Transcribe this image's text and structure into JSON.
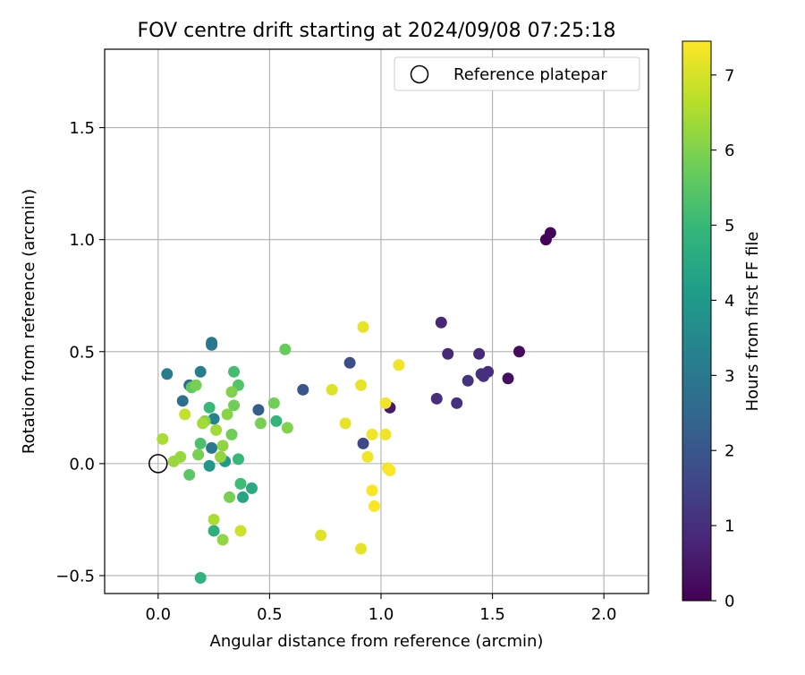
{
  "chart_data": {
    "type": "scatter",
    "title": "FOV centre drift starting at 2024/09/08 07:25:18",
    "xlabel": "Angular distance from reference (arcmin)",
    "ylabel": "Rotation from reference (arcmin)",
    "xlim": [
      -0.24,
      2.2
    ],
    "ylim": [
      -0.58,
      1.85
    ],
    "xticks": [
      0.0,
      0.5,
      1.0,
      1.5,
      2.0
    ],
    "xtick_labels": [
      "0.0",
      "0.5",
      "1.0",
      "1.5",
      "2.0"
    ],
    "yticks": [
      -0.5,
      0.0,
      0.5,
      1.0,
      1.5
    ],
    "ytick_labels": [
      "−0.5",
      "0.0",
      "0.5",
      "1.0",
      "1.5"
    ],
    "grid": true,
    "legend": {
      "placement": "top-right",
      "entries": [
        {
          "label": "Reference platepar",
          "marker": "open-circle"
        }
      ]
    },
    "colorbar": {
      "label": "Hours from first FF file",
      "colormap": "viridis",
      "range": [
        0,
        7.45
      ],
      "ticks": [
        0,
        1,
        2,
        3,
        4,
        5,
        6,
        7
      ],
      "tick_labels": [
        "0",
        "1",
        "2",
        "3",
        "4",
        "5",
        "6",
        "7"
      ],
      "stops": [
        "#440154",
        "#482878",
        "#3e4a89",
        "#31688e",
        "#26828e",
        "#1f9e89",
        "#35b779",
        "#6ece58",
        "#b5de2b",
        "#fde725"
      ]
    },
    "reference_point": {
      "x": 0.0,
      "y": 0.0
    },
    "points": [
      {
        "x": 1.74,
        "y": 1.0,
        "t": 0.05
      },
      {
        "x": 1.76,
        "y": 1.03,
        "t": 0.1
      },
      {
        "x": 1.62,
        "y": 0.5,
        "t": 0.2
      },
      {
        "x": 1.57,
        "y": 0.38,
        "t": 0.3
      },
      {
        "x": 1.04,
        "y": 0.25,
        "t": 0.5
      },
      {
        "x": 1.27,
        "y": 0.63,
        "t": 0.8
      },
      {
        "x": 1.3,
        "y": 0.49,
        "t": 0.85
      },
      {
        "x": 1.44,
        "y": 0.49,
        "t": 0.9
      },
      {
        "x": 1.48,
        "y": 0.41,
        "t": 0.95
      },
      {
        "x": 1.45,
        "y": 0.4,
        "t": 1.0
      },
      {
        "x": 1.46,
        "y": 0.39,
        "t": 1.05
      },
      {
        "x": 1.39,
        "y": 0.37,
        "t": 1.1
      },
      {
        "x": 1.25,
        "y": 0.29,
        "t": 1.0
      },
      {
        "x": 1.34,
        "y": 0.27,
        "t": 1.05
      },
      {
        "x": 0.92,
        "y": 0.09,
        "t": 1.6
      },
      {
        "x": 0.86,
        "y": 0.45,
        "t": 1.8
      },
      {
        "x": 0.65,
        "y": 0.33,
        "t": 2.0
      },
      {
        "x": 0.45,
        "y": 0.24,
        "t": 2.2
      },
      {
        "x": 0.14,
        "y": 0.35,
        "t": 2.6
      },
      {
        "x": 0.11,
        "y": 0.28,
        "t": 2.7
      },
      {
        "x": 0.24,
        "y": 0.53,
        "t": 2.9
      },
      {
        "x": 0.24,
        "y": 0.54,
        "t": 3.0
      },
      {
        "x": 0.04,
        "y": 0.4,
        "t": 3.1
      },
      {
        "x": 0.19,
        "y": 0.41,
        "t": 3.2
      },
      {
        "x": 0.24,
        "y": 0.07,
        "t": 3.0
      },
      {
        "x": 0.25,
        "y": 0.2,
        "t": 3.3
      },
      {
        "x": 0.23,
        "y": -0.01,
        "t": 3.9
      },
      {
        "x": 0.3,
        "y": 0.01,
        "t": 4.0
      },
      {
        "x": 0.38,
        "y": -0.15,
        "t": 4.4
      },
      {
        "x": 0.42,
        "y": -0.11,
        "t": 4.5
      },
      {
        "x": 0.25,
        "y": -0.3,
        "t": 4.7
      },
      {
        "x": 0.19,
        "y": -0.51,
        "t": 4.8
      },
      {
        "x": 0.53,
        "y": 0.19,
        "t": 4.9
      },
      {
        "x": 0.36,
        "y": 0.02,
        "t": 5.0
      },
      {
        "x": 0.37,
        "y": -0.09,
        "t": 5.1
      },
      {
        "x": 0.23,
        "y": 0.25,
        "t": 5.0
      },
      {
        "x": 0.34,
        "y": 0.41,
        "t": 5.2
      },
      {
        "x": 0.36,
        "y": 0.35,
        "t": 5.4
      },
      {
        "x": 0.19,
        "y": 0.09,
        "t": 5.3
      },
      {
        "x": 0.14,
        "y": -0.05,
        "t": 5.5
      },
      {
        "x": 0.15,
        "y": 0.34,
        "t": 5.6
      },
      {
        "x": 0.57,
        "y": 0.51,
        "t": 5.7
      },
      {
        "x": 0.52,
        "y": 0.27,
        "t": 5.8
      },
      {
        "x": 0.46,
        "y": 0.18,
        "t": 5.9
      },
      {
        "x": 0.33,
        "y": 0.13,
        "t": 5.8
      },
      {
        "x": 0.34,
        "y": 0.26,
        "t": 5.8
      },
      {
        "x": 0.17,
        "y": 0.35,
        "t": 5.9
      },
      {
        "x": 0.18,
        "y": 0.04,
        "t": 5.9
      },
      {
        "x": 0.32,
        "y": -0.15,
        "t": 5.9
      },
      {
        "x": 0.58,
        "y": 0.16,
        "t": 6.0
      },
      {
        "x": 0.33,
        "y": 0.32,
        "t": 6.0
      },
      {
        "x": 0.31,
        "y": 0.22,
        "t": 6.1
      },
      {
        "x": 0.21,
        "y": 0.19,
        "t": 6.0
      },
      {
        "x": 0.29,
        "y": 0.08,
        "t": 6.2
      },
      {
        "x": 0.28,
        "y": 0.03,
        "t": 6.2
      },
      {
        "x": 0.1,
        "y": 0.03,
        "t": 6.3
      },
      {
        "x": 0.07,
        "y": 0.01,
        "t": 6.3
      },
      {
        "x": 0.26,
        "y": 0.15,
        "t": 6.4
      },
      {
        "x": 0.2,
        "y": 0.18,
        "t": 6.4
      },
      {
        "x": 0.02,
        "y": 0.11,
        "t": 6.5
      },
      {
        "x": 0.12,
        "y": 0.22,
        "t": 6.8
      },
      {
        "x": 0.25,
        "y": -0.25,
        "t": 6.5
      },
      {
        "x": 0.29,
        "y": -0.34,
        "t": 6.2
      },
      {
        "x": 0.37,
        "y": -0.3,
        "t": 6.9
      },
      {
        "x": 0.73,
        "y": -0.32,
        "t": 7.1
      },
      {
        "x": 0.91,
        "y": -0.38,
        "t": 7.2
      },
      {
        "x": 0.78,
        "y": 0.33,
        "t": 7.1
      },
      {
        "x": 0.84,
        "y": 0.18,
        "t": 7.2
      },
      {
        "x": 0.92,
        "y": 0.61,
        "t": 7.2
      },
      {
        "x": 0.91,
        "y": 0.35,
        "t": 7.2
      },
      {
        "x": 1.08,
        "y": 0.44,
        "t": 7.3
      },
      {
        "x": 1.02,
        "y": 0.27,
        "t": 7.3
      },
      {
        "x": 0.96,
        "y": 0.13,
        "t": 7.3
      },
      {
        "x": 1.02,
        "y": 0.13,
        "t": 7.3
      },
      {
        "x": 0.94,
        "y": 0.03,
        "t": 7.3
      },
      {
        "x": 1.03,
        "y": -0.02,
        "t": 7.3
      },
      {
        "x": 1.04,
        "y": -0.03,
        "t": 7.4
      },
      {
        "x": 0.96,
        "y": -0.12,
        "t": 7.4
      },
      {
        "x": 0.97,
        "y": -0.19,
        "t": 7.4
      }
    ]
  }
}
